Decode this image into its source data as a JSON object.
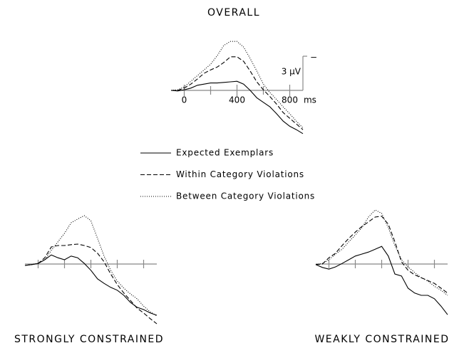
{
  "chart_data": [
    {
      "type": "line",
      "title": "OVERALL",
      "x": [
        -100,
        -50,
        0,
        50,
        100,
        150,
        200,
        250,
        300,
        350,
        400,
        450,
        500,
        550,
        600,
        650,
        700,
        750,
        800,
        850,
        900
      ],
      "xlim": [
        -100,
        900
      ],
      "ylim": [
        11,
        -10
      ],
      "xticks": [
        0,
        400,
        800
      ],
      "xminor": [
        200,
        600
      ],
      "x_unit": "ms",
      "scale_bar": {
        "value": -3,
        "label": "3 μV",
        "sign": "−"
      },
      "series": [
        {
          "name": "Expected Exemplars",
          "color": "#000000",
          "dash": "solid",
          "values": [
            0,
            0.1,
            -0.1,
            -0.4,
            -0.9,
            -1.1,
            -1.3,
            -1.3,
            -1.4,
            -1.5,
            -1.6,
            -1.1,
            0,
            1.3,
            2.1,
            2.9,
            4.1,
            5.4,
            6.3,
            6.9,
            7.6
          ]
        },
        {
          "name": "Within Category Violations",
          "color": "#000000",
          "dash": "dashed",
          "values": [
            0,
            0,
            -0.4,
            -1.1,
            -2,
            -3,
            -3.6,
            -4.1,
            -4.9,
            -5.9,
            -5.9,
            -5.1,
            -3.4,
            -1.5,
            -0.1,
            1.1,
            2.4,
            3.9,
            4.9,
            5.9,
            6.9
          ]
        },
        {
          "name": "Between Category Violations",
          "color": "#000000",
          "dash": "dotted",
          "values": [
            0,
            -0.1,
            -0.6,
            -1.6,
            -2.6,
            -3.6,
            -4.6,
            -6.1,
            -7.9,
            -8.6,
            -8.6,
            -7.6,
            -5.6,
            -3.4,
            -1.1,
            0.4,
            1.6,
            2.9,
            4.1,
            5.4,
            6.6
          ]
        }
      ]
    },
    {
      "type": "line",
      "title": "STRONGLY CONSTRAINED",
      "x": [
        -100,
        -50,
        0,
        50,
        100,
        150,
        200,
        250,
        300,
        350,
        400,
        450,
        500,
        550,
        600,
        650,
        700,
        750,
        800,
        850,
        900
      ],
      "xlim": [
        -100,
        900
      ],
      "ylim": [
        11,
        -10
      ],
      "xminor": [
        0,
        200,
        400,
        600,
        800
      ],
      "series": [
        {
          "color": "#000000",
          "dash": "solid",
          "values": [
            0.25,
            0.1,
            -0.1,
            -0.75,
            -1.6,
            -1.1,
            -0.75,
            -1.4,
            -1.1,
            -0.1,
            1.1,
            2.6,
            3.4,
            4.1,
            4.6,
            5.5,
            6.75,
            7.6,
            8,
            8.6,
            9
          ]
        },
        {
          "color": "#000000",
          "dash": "dashed",
          "values": [
            0.25,
            0.1,
            -0.1,
            -1.1,
            -3,
            -3.25,
            -3.25,
            -3.4,
            -3.5,
            -3.25,
            -2.9,
            -1.9,
            -0.4,
            1.75,
            3.6,
            5.1,
            6.4,
            7.75,
            8.6,
            9.6,
            10.5
          ]
        },
        {
          "color": "#000000",
          "dash": "dotted",
          "values": [
            0.25,
            0.1,
            -0.1,
            -0.75,
            -2.4,
            -3.9,
            -5.4,
            -7.25,
            -7.9,
            -8.5,
            -7.6,
            -4.5,
            -1.4,
            1.1,
            3,
            4.25,
            5.25,
            6.1,
            7.4,
            8.4,
            9.1
          ]
        }
      ]
    },
    {
      "type": "line",
      "title": "WEAKLY CONSTRAINED",
      "x": [
        -100,
        -50,
        0,
        50,
        100,
        150,
        200,
        250,
        300,
        350,
        400,
        450,
        500,
        550,
        600,
        650,
        700,
        750,
        800,
        850,
        900
      ],
      "xlim": [
        -100,
        900
      ],
      "ylim": [
        11,
        -10
      ],
      "xminor": [
        0,
        200,
        400,
        600,
        800
      ],
      "series": [
        {
          "color": "#000000",
          "dash": "solid",
          "values": [
            0.1,
            0.6,
            0.9,
            0.5,
            -0.1,
            -0.75,
            -1.4,
            -1.75,
            -2.1,
            -2.6,
            -3.1,
            -1.4,
            1.75,
            2.1,
            4.25,
            5.1,
            5.5,
            5.5,
            6.1,
            7.4,
            8.9
          ]
        },
        {
          "color": "#000000",
          "dash": "dashed",
          "values": [
            0.1,
            0,
            -1.1,
            -1.9,
            -3.25,
            -4.5,
            -5.6,
            -6.6,
            -7.4,
            -8.25,
            -8.4,
            -7,
            -3.9,
            -0.4,
            1.1,
            1.9,
            2.4,
            2.9,
            3.4,
            4.25,
            5.1
          ]
        },
        {
          "color": "#000000",
          "dash": "dotted",
          "values": [
            0.1,
            -0.1,
            -0.75,
            -1.75,
            -2.6,
            -3.9,
            -5.1,
            -6.4,
            -8.25,
            -9.5,
            -8.9,
            -6.4,
            -3.25,
            -0.75,
            0.5,
            1.5,
            2.4,
            3,
            3.9,
            4.6,
            5.5
          ]
        }
      ]
    }
  ]
}
